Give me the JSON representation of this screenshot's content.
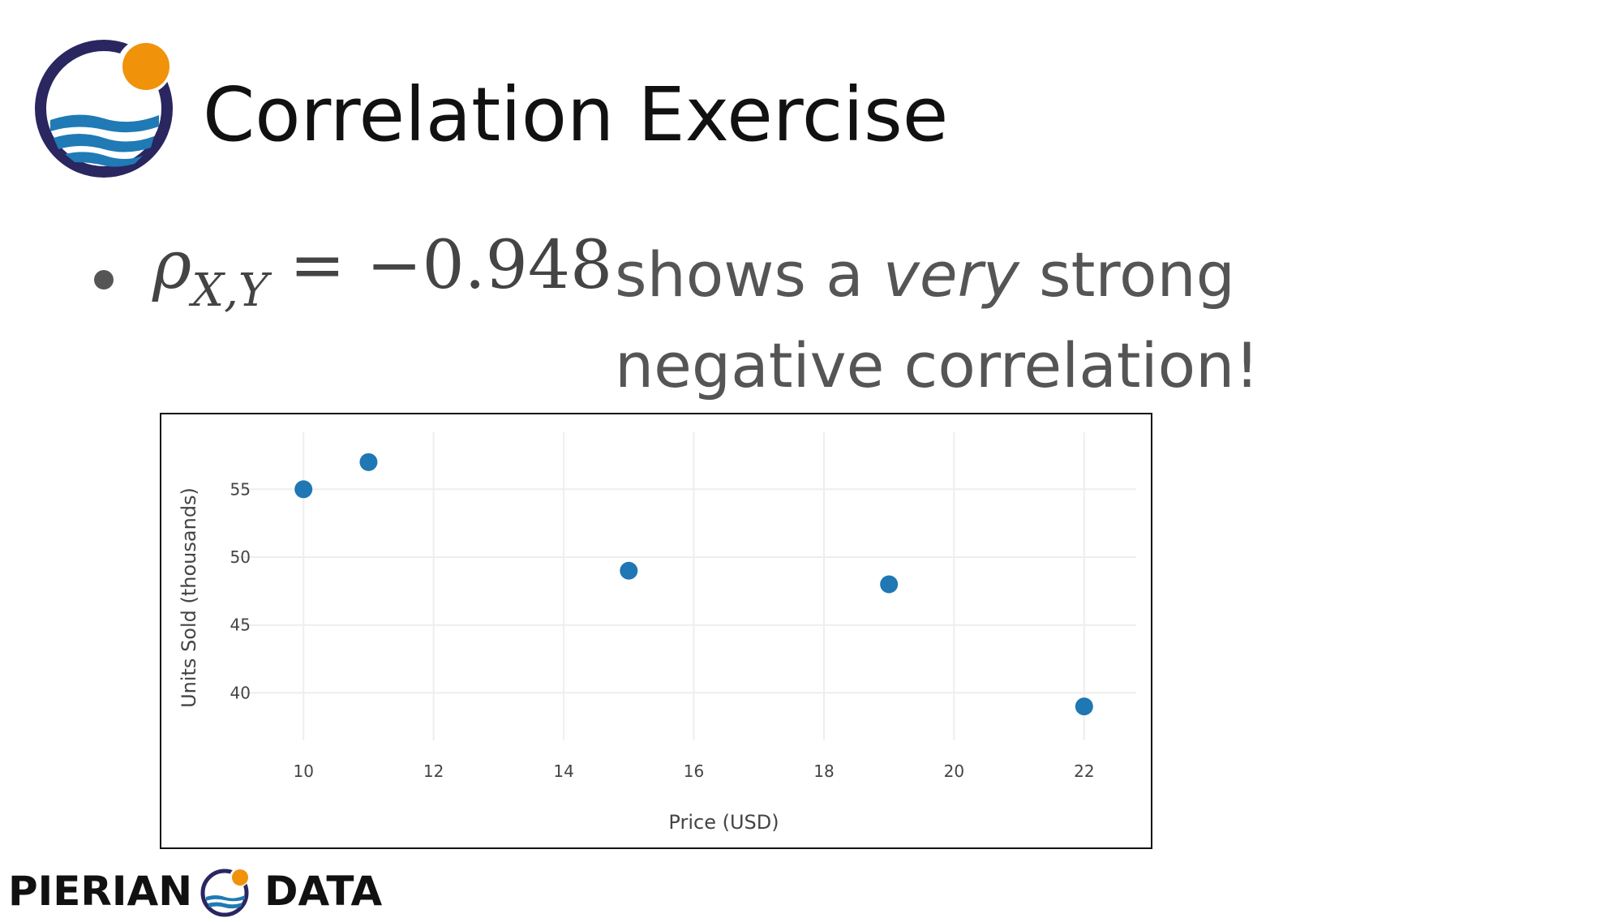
{
  "slide": {
    "title": "Correlation Exercise",
    "formula": {
      "symbol": "ρ",
      "subscript": "X,Y",
      "equals": "=",
      "value": "−0.948"
    },
    "statement": {
      "line1_pre": "shows a ",
      "line1_em": "very",
      "line1_post": " strong",
      "line2": "negative correlation!"
    }
  },
  "footer": {
    "left_text": "PIERIAN",
    "right_text": "DATA"
  },
  "colors": {
    "brand_navy": "#2a2660",
    "brand_orange": "#f0930a",
    "brand_blue": "#1f7ab5",
    "point": "#1f77b4",
    "grid": "#eeeeee"
  },
  "chart_data": {
    "type": "scatter",
    "x": [
      10,
      11,
      15,
      19,
      22
    ],
    "y": [
      55,
      57,
      49,
      48,
      39
    ],
    "xlabel": "Price (USD)",
    "ylabel": "Units Sold (thousands)",
    "xticks": [
      10,
      12,
      14,
      16,
      18,
      20,
      22
    ],
    "yticks": [
      40,
      45,
      50,
      55
    ],
    "xlim": [
      9.0,
      22.8
    ],
    "ylim": [
      36.5,
      59.2
    ],
    "grid": true,
    "legend": "none"
  }
}
